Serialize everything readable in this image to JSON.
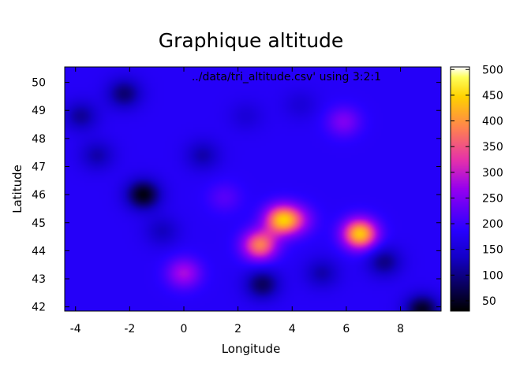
{
  "chart_data": {
    "type": "heatmap",
    "title": "Graphique altitude",
    "xlabel": "Longitude",
    "ylabel": "Latitude",
    "plot_key": "../data/tri_altitude.csv' using 3:2:1",
    "xlim": [
      -4.4,
      9.5
    ],
    "ylim": [
      41.85,
      50.55
    ],
    "x_ticks": [
      -4,
      -2,
      0,
      2,
      4,
      6,
      8
    ],
    "y_ticks": [
      42,
      43,
      44,
      45,
      46,
      47,
      48,
      49,
      50
    ],
    "colorbar": {
      "range": [
        30,
        505
      ],
      "ticks": [
        50,
        100,
        150,
        200,
        250,
        300,
        350,
        400,
        450,
        500
      ],
      "palette": "black-blue-purple-red-yellow-white"
    },
    "grid": false,
    "base_value": 180,
    "features": [
      {
        "x": 6.5,
        "y": 44.6,
        "value": 440
      },
      {
        "x": 3.6,
        "y": 45.1,
        "value": 410
      },
      {
        "x": 2.8,
        "y": 44.2,
        "value": 380
      },
      {
        "x": 0.0,
        "y": 43.2,
        "value": 280
      },
      {
        "x": 5.9,
        "y": 48.6,
        "value": 250
      },
      {
        "x": 4.2,
        "y": 45.1,
        "value": 260
      },
      {
        "x": 1.5,
        "y": 45.9,
        "value": 220
      },
      {
        "x": -1.5,
        "y": 46.0,
        "value": 40
      },
      {
        "x": -2.2,
        "y": 49.6,
        "value": 90
      },
      {
        "x": -3.8,
        "y": 48.8,
        "value": 110
      },
      {
        "x": -3.2,
        "y": 47.4,
        "value": 120
      },
      {
        "x": 0.7,
        "y": 47.4,
        "value": 120
      },
      {
        "x": 2.3,
        "y": 48.8,
        "value": 150
      },
      {
        "x": 4.3,
        "y": 49.2,
        "value": 150
      },
      {
        "x": 2.9,
        "y": 42.8,
        "value": 80
      },
      {
        "x": 5.1,
        "y": 43.2,
        "value": 120
      },
      {
        "x": 7.4,
        "y": 43.6,
        "value": 100
      },
      {
        "x": -0.8,
        "y": 44.7,
        "value": 130
      },
      {
        "x": 8.8,
        "y": 41.9,
        "value": 50
      }
    ]
  }
}
